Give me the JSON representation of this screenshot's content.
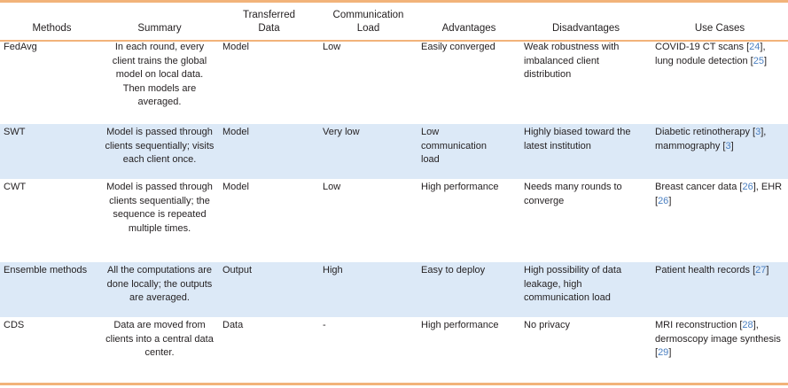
{
  "headers": {
    "methods": "Methods",
    "summary": "Summary",
    "transferred_data": "Transferred Data",
    "communication_load": "Communication Load",
    "advantages": "Advantages",
    "disadvantages": "Disadvantages",
    "use_cases": "Use Cases"
  },
  "rows": [
    {
      "method": "FedAvg",
      "summary": "In each round, every client trains the global model on local data. Then models are averaged.",
      "data": "Model",
      "load": "Low",
      "advantages": "Easily converged",
      "disadvantages": "Weak robustness with imbalanced client distribution",
      "use_a": "COVID-19 CT scans [",
      "ref1": "24",
      "use_b": "], lung nodule detection [",
      "ref2": "25",
      "use_c": "]"
    },
    {
      "method": "SWT",
      "summary": "Model is passed through clients sequentially; visits each client once.",
      "data": "Model",
      "load": "Very low",
      "advantages": "Low communication load",
      "disadvantages": "Highly biased toward the latest institution",
      "use_a": "Diabetic retinotherapy [",
      "ref1": "3",
      "use_b": "], mammography [",
      "ref2": "3",
      "use_c": "]"
    },
    {
      "method": "CWT",
      "summary": "Model is passed through clients sequentially; the sequence is repeated multiple times.",
      "data": "Model",
      "load": "Low",
      "advantages": "High performance",
      "disadvantages": "Needs many rounds to converge",
      "use_a": "Breast cancer data [",
      "ref1": "26",
      "use_b": "], EHR [",
      "ref2": "26",
      "use_c": "]"
    },
    {
      "method": "Ensemble methods",
      "summary": "All the computations are done locally; the outputs are averaged.",
      "data": "Output",
      "load": "High",
      "advantages": "Easy to deploy",
      "disadvantages": "High possibility of data leakage, high communication load",
      "use_a": "Patient health records [",
      "ref1": "27",
      "use_b": "]",
      "ref2": "",
      "use_c": ""
    },
    {
      "method": "CDS",
      "summary": "Data are moved from clients into a central data center.",
      "data": "Data",
      "load": "-",
      "advantages": "High performance",
      "disadvantages": "No privacy",
      "use_a": "MRI reconstruction [",
      "ref1": "28",
      "use_b": "], dermoscopy image synthesis [",
      "ref2": "29",
      "use_c": "]"
    }
  ],
  "colors": {
    "rule": "#f2b37a",
    "shade": "#dce9f7",
    "reference_link": "#4a7fc1"
  }
}
